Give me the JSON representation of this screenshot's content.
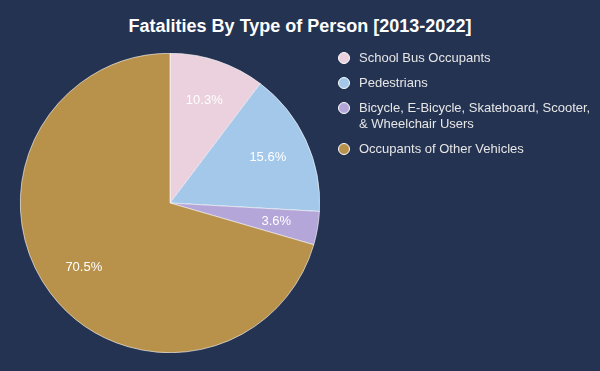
{
  "chart_data": {
    "type": "pie",
    "title": "Fatalities By Type of Person [2013-2022]",
    "categories": [
      "School Bus Occupants",
      "Pedestrians",
      "Bicycle, E-Bicycle, Skateboard, Scooter, & Wheelchair Users",
      "Occupants of Other Vehicles"
    ],
    "values": [
      10.3,
      15.6,
      3.6,
      70.5
    ],
    "value_labels": [
      "10.3%",
      "15.6%",
      "3.6%",
      "70.5%"
    ],
    "colors": [
      "#ebd0dd",
      "#a3c8ea",
      "#b4a6d8",
      "#b8914a"
    ],
    "legend": "right",
    "data_labels": true
  }
}
